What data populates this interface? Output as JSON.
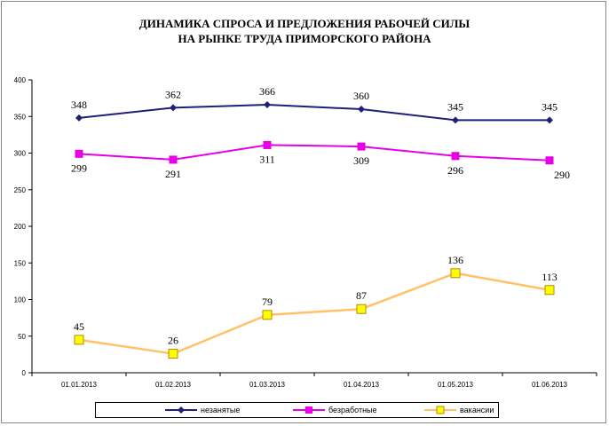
{
  "chart_data": {
    "type": "line",
    "title_lines": [
      "ДИНАМИКА СПРОСА И ПРЕДЛОЖЕНИЯ РАБОЧЕЙ СИЛЫ",
      "НА РЫНКЕ ТРУДА ПРИМОРСКОГО РАЙОНА"
    ],
    "categories": [
      "01.01.2013",
      "01.02.2013",
      "01.03.2013",
      "01.04.2013",
      "01.05.2013",
      "01.06.2013"
    ],
    "ylim": [
      0,
      400
    ],
    "yticks": [
      0,
      50,
      100,
      150,
      200,
      250,
      300,
      350,
      400
    ],
    "legend_position": "bottom",
    "series": [
      {
        "name": "незанятые",
        "values": [
          348,
          362,
          366,
          360,
          345,
          345
        ],
        "color": "#1F1F7A",
        "marker": "diamond",
        "label_pos": "above"
      },
      {
        "name": "безработные",
        "values": [
          299,
          291,
          311,
          309,
          296,
          290
        ],
        "color": "#E600E6",
        "marker": "square",
        "label_pos": "below"
      },
      {
        "name": "вакансии",
        "values": [
          45,
          26,
          79,
          87,
          136,
          113
        ],
        "color": "#FFC266",
        "marker": "square-yellow",
        "label_pos": "above"
      }
    ]
  }
}
